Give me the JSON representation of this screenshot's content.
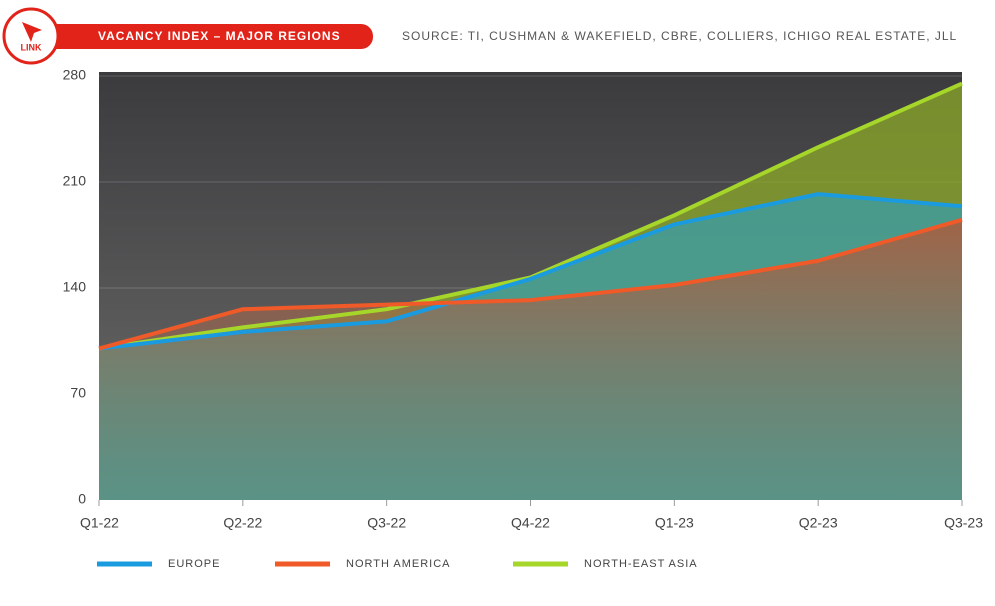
{
  "logo": "LINK",
  "chart_data": {
    "type": "area-line",
    "title": "VACANCY INDEX – MAJOR REGIONS",
    "source": "SOURCE: TI, CUSHMAN & WAKEFIELD, CBRE, COLLIERS, ICHIGO REAL ESTATE, JLL",
    "categories": [
      "Q1-22",
      "Q2-22",
      "Q3-22",
      "Q4-22",
      "Q1-23",
      "Q2-23",
      "Q3-23"
    ],
    "series": [
      {
        "name": "NORTH-EAST ASIA",
        "color": "#a6d62a",
        "values": [
          100,
          114,
          126,
          147,
          188,
          233,
          275
        ]
      },
      {
        "name": "EUROPE",
        "color": "#1a9be0",
        "values": [
          100,
          111,
          118,
          146,
          182,
          202,
          194
        ]
      },
      {
        "name": "NORTH AMERICA",
        "color": "#ef5a28",
        "values": [
          100,
          126,
          129,
          132,
          142,
          158,
          185
        ]
      }
    ],
    "ylim": [
      0,
      280
    ],
    "yticks": [
      0,
      70,
      140,
      210,
      280
    ],
    "grid": true
  }
}
